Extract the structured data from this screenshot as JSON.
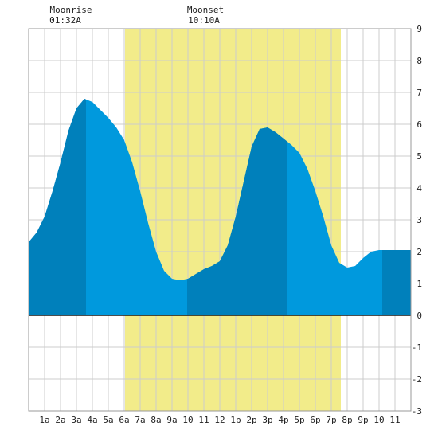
{
  "annotations": {
    "moonrise": {
      "label": "Moonrise",
      "time": "01:32A",
      "hour": 1.53
    },
    "moonset": {
      "label": "Moonset",
      "time": "10:10A",
      "hour": 10.17
    }
  },
  "chart_data": {
    "type": "area",
    "title": "",
    "xlabel": "",
    "ylabel": "",
    "xlim": [
      -1,
      23
    ],
    "ylim": [
      -3,
      9
    ],
    "grid": true,
    "x_ticks": [
      {
        "hour": 0,
        "label": "1a"
      },
      {
        "hour": 1,
        "label": "2a"
      },
      {
        "hour": 2,
        "label": "3a"
      },
      {
        "hour": 3,
        "label": "4a"
      },
      {
        "hour": 4,
        "label": "5a"
      },
      {
        "hour": 5,
        "label": "6a"
      },
      {
        "hour": 6,
        "label": "7a"
      },
      {
        "hour": 7,
        "label": "8a"
      },
      {
        "hour": 8,
        "label": "9a"
      },
      {
        "hour": 9,
        "label": "10"
      },
      {
        "hour": 10,
        "label": "11"
      },
      {
        "hour": 11,
        "label": "12"
      },
      {
        "hour": 12,
        "label": "1p"
      },
      {
        "hour": 13,
        "label": "2p"
      },
      {
        "hour": 14,
        "label": "3p"
      },
      {
        "hour": 15,
        "label": "4p"
      },
      {
        "hour": 16,
        "label": "5p"
      },
      {
        "hour": 17,
        "label": "6p"
      },
      {
        "hour": 18,
        "label": "7p"
      },
      {
        "hour": 19,
        "label": "8p"
      },
      {
        "hour": 20,
        "label": "9p"
      },
      {
        "hour": 21,
        "label": "10"
      },
      {
        "hour": 22,
        "label": "11"
      }
    ],
    "y_ticks": [
      9,
      8,
      7,
      6,
      5,
      4,
      3,
      2,
      1,
      0,
      -1,
      -2,
      -3
    ],
    "daylight": {
      "start_hour": 5.05,
      "end_hour": 18.6
    },
    "shade_bands": [
      {
        "start_hour": -1,
        "end_hour": 2.6
      },
      {
        "start_hour": 8.95,
        "end_hour": 15.2
      },
      {
        "start_hour": 21.2,
        "end_hour": 23
      }
    ],
    "series": [
      {
        "x": [
          -1,
          -0.5,
          0,
          0.5,
          1,
          1.5,
          2,
          2.5,
          3,
          3.5,
          4,
          4.5,
          5,
          5.5,
          6,
          6.5,
          7,
          7.5,
          8,
          8.5,
          9,
          9.5,
          10,
          10.5,
          11,
          11.5,
          12,
          12.5,
          13,
          13.5,
          14,
          14.5,
          15,
          15.5,
          16,
          16.5,
          17,
          17.5,
          18,
          18.5,
          19,
          19.5,
          20,
          20.5,
          21,
          21.5,
          22,
          22.5,
          23
        ],
        "values": [
          2.3,
          2.6,
          3.1,
          3.9,
          4.8,
          5.8,
          6.5,
          6.8,
          6.7,
          6.45,
          6.2,
          5.9,
          5.5,
          4.8,
          3.9,
          2.9,
          2.0,
          1.4,
          1.15,
          1.1,
          1.15,
          1.3,
          1.45,
          1.55,
          1.7,
          2.2,
          3.1,
          4.2,
          5.3,
          5.85,
          5.9,
          5.75,
          5.55,
          5.35,
          5.1,
          4.6,
          3.9,
          3.1,
          2.2,
          1.65,
          1.5,
          1.55,
          1.8,
          2.0,
          2.05,
          2.05,
          2.05,
          2.05,
          2.05
        ]
      }
    ],
    "colors": {
      "daylight": "#f2ec8a",
      "tide": "#0099dd",
      "tide_shade": "#0080bb",
      "grid": "#cccccc",
      "frame": "#999999",
      "zero_line": "#111111"
    }
  }
}
